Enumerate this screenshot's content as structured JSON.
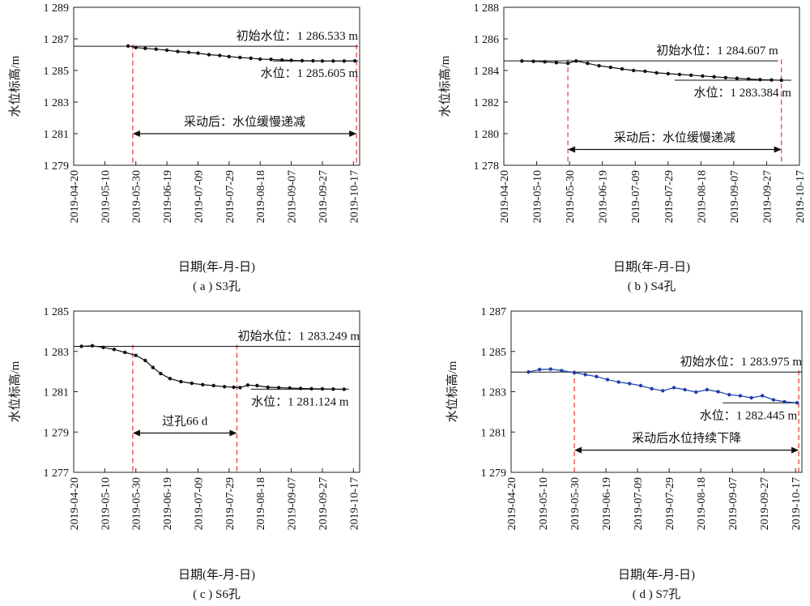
{
  "chart_data": [
    {
      "type": "line",
      "caption": "( a ) S3孔",
      "xlabel": "日期(年-月-日)",
      "ylabel": "水位标高/m",
      "x_ticks": [
        "2019-04-20",
        "2019-05-10",
        "2019-05-30",
        "2019-06-19",
        "2019-07-09",
        "2019-07-29",
        "2019-08-18",
        "2019-09-07",
        "2019-09-27",
        "2019-10-17"
      ],
      "y_ticks": [
        "1 279",
        "1 281",
        "1 283",
        "1 285",
        "1 287",
        "1 289"
      ],
      "ylim": [
        1279,
        1289
      ],
      "xlim": [
        "2019-04-20",
        "2019-10-21"
      ],
      "series": [
        {
          "color": "#111111",
          "points": [
            [
              "2019-05-25",
              1286.55
            ],
            [
              "2019-05-30",
              1286.45
            ],
            [
              "2019-06-05",
              1286.4
            ],
            [
              "2019-06-12",
              1286.35
            ],
            [
              "2019-06-19",
              1286.28
            ],
            [
              "2019-06-26",
              1286.2
            ],
            [
              "2019-07-03",
              1286.15
            ],
            [
              "2019-07-09",
              1286.1
            ],
            [
              "2019-07-16",
              1286.0
            ],
            [
              "2019-07-23",
              1285.95
            ],
            [
              "2019-07-29",
              1285.88
            ],
            [
              "2019-08-05",
              1285.82
            ],
            [
              "2019-08-12",
              1285.78
            ],
            [
              "2019-08-18",
              1285.72
            ],
            [
              "2019-08-25",
              1285.7
            ],
            [
              "2019-09-01",
              1285.66
            ],
            [
              "2019-09-07",
              1285.64
            ],
            [
              "2019-09-14",
              1285.62
            ],
            [
              "2019-09-21",
              1285.61
            ],
            [
              "2019-09-27",
              1285.6
            ],
            [
              "2019-10-04",
              1285.6
            ],
            [
              "2019-10-11",
              1285.6
            ],
            [
              "2019-10-18",
              1285.61
            ]
          ]
        }
      ],
      "hlines": [
        {
          "y": 1286.533,
          "x0": "2019-04-20",
          "x1": "2019-10-20",
          "label": "初始水位：1 286.533 m"
        },
        {
          "y": 1285.605,
          "x0": "2019-08-26",
          "x1": "2019-10-20",
          "label": "水位：1 285.605 m"
        }
      ],
      "vlines": [
        "2019-05-28",
        "2019-10-19"
      ],
      "arrow": {
        "x0": "2019-05-28",
        "x1": "2019-10-19",
        "y": 1281.0,
        "label": "采动后：水位缓慢递减"
      }
    },
    {
      "type": "line",
      "caption": "( b ) S4孔",
      "xlabel": "日期(年-月-日)",
      "ylabel": "水位标高/m",
      "x_ticks": [
        "2019-04-20",
        "2019-05-10",
        "2019-05-30",
        "2019-06-19",
        "2019-07-09",
        "2019-07-29",
        "2019-08-18",
        "2019-09-07",
        "2019-09-27",
        "2019-10-17"
      ],
      "y_ticks": [
        "1 278",
        "1 280",
        "1 282",
        "1 284",
        "1 286",
        "1 288"
      ],
      "ylim": [
        1278,
        1288
      ],
      "xlim": [
        "2019-04-20",
        "2019-10-17"
      ],
      "series": [
        {
          "color": "#111111",
          "points": [
            [
              "2019-05-01",
              1284.6
            ],
            [
              "2019-05-08",
              1284.58
            ],
            [
              "2019-05-15",
              1284.55
            ],
            [
              "2019-05-22",
              1284.5
            ],
            [
              "2019-05-29",
              1284.45
            ],
            [
              "2019-06-03",
              1284.6
            ],
            [
              "2019-06-10",
              1284.45
            ],
            [
              "2019-06-17",
              1284.3
            ],
            [
              "2019-06-24",
              1284.2
            ],
            [
              "2019-07-01",
              1284.1
            ],
            [
              "2019-07-08",
              1284.0
            ],
            [
              "2019-07-15",
              1283.95
            ],
            [
              "2019-07-22",
              1283.85
            ],
            [
              "2019-07-29",
              1283.8
            ],
            [
              "2019-08-05",
              1283.75
            ],
            [
              "2019-08-12",
              1283.7
            ],
            [
              "2019-08-19",
              1283.65
            ],
            [
              "2019-08-26",
              1283.6
            ],
            [
              "2019-09-02",
              1283.55
            ],
            [
              "2019-09-09",
              1283.5
            ],
            [
              "2019-09-16",
              1283.46
            ],
            [
              "2019-09-23",
              1283.42
            ],
            [
              "2019-09-30",
              1283.4
            ],
            [
              "2019-10-06",
              1283.38
            ]
          ]
        }
      ],
      "hlines": [
        {
          "y": 1284.607,
          "x0": "2019-04-20",
          "x1": "2019-10-04",
          "label": "初始水位：1 284.607 m"
        },
        {
          "y": 1283.384,
          "x0": "2019-08-02",
          "x1": "2019-10-12",
          "label": "水位：1 283.384 m"
        }
      ],
      "vlines": [
        "2019-05-29",
        "2019-10-06"
      ],
      "arrow": {
        "x0": "2019-05-29",
        "x1": "2019-10-06",
        "y": 1279.0,
        "label": "采动后：水位缓慢递减"
      }
    },
    {
      "type": "line",
      "caption": "( c ) S6孔",
      "xlabel": "日期(年-月-日)",
      "ylabel": "水位标高/m",
      "x_ticks": [
        "2019-04-20",
        "2019-05-10",
        "2019-05-30",
        "2019-06-19",
        "2019-07-09",
        "2019-07-29",
        "2019-08-18",
        "2019-09-07",
        "2019-09-27",
        "2019-10-17"
      ],
      "y_ticks": [
        "1 277",
        "1 279",
        "1 281",
        "1 283",
        "1 285"
      ],
      "ylim": [
        1277,
        1285
      ],
      "xlim": [
        "2019-04-20",
        "2019-10-21"
      ],
      "series": [
        {
          "color": "#111111",
          "points": [
            [
              "2019-04-25",
              1283.25
            ],
            [
              "2019-05-02",
              1283.28
            ],
            [
              "2019-05-09",
              1283.2
            ],
            [
              "2019-05-16",
              1283.1
            ],
            [
              "2019-05-23",
              1282.95
            ],
            [
              "2019-05-30",
              1282.8
            ],
            [
              "2019-06-05",
              1282.55
            ],
            [
              "2019-06-10",
              1282.2
            ],
            [
              "2019-06-15",
              1281.9
            ],
            [
              "2019-06-21",
              1281.65
            ],
            [
              "2019-06-28",
              1281.5
            ],
            [
              "2019-07-05",
              1281.42
            ],
            [
              "2019-07-12",
              1281.35
            ],
            [
              "2019-07-19",
              1281.3
            ],
            [
              "2019-07-26",
              1281.25
            ],
            [
              "2019-08-01",
              1281.22
            ],
            [
              "2019-08-05",
              1281.2
            ],
            [
              "2019-08-10",
              1281.33
            ],
            [
              "2019-08-16",
              1281.3
            ],
            [
              "2019-08-23",
              1281.22
            ],
            [
              "2019-08-30",
              1281.2
            ],
            [
              "2019-09-06",
              1281.18
            ],
            [
              "2019-09-13",
              1281.16
            ],
            [
              "2019-09-20",
              1281.15
            ],
            [
              "2019-09-27",
              1281.14
            ],
            [
              "2019-10-04",
              1281.13
            ],
            [
              "2019-10-11",
              1281.12
            ]
          ]
        }
      ],
      "hlines": [
        {
          "y": 1283.249,
          "x0": "2019-04-20",
          "x1": "2019-10-21",
          "label": "初始水位：1 283.249 m"
        },
        {
          "y": 1281.124,
          "x0": "2019-08-12",
          "x1": "2019-10-14",
          "label": "水位：1 281.124 m"
        }
      ],
      "vlines": [
        "2019-05-28",
        "2019-08-03"
      ],
      "arrow": {
        "x0": "2019-05-28",
        "x1": "2019-08-03",
        "y": 1278.95,
        "label": "过孔66 d"
      }
    },
    {
      "type": "line",
      "caption": "( d ) S7孔",
      "xlabel": "日期(年-月-日)",
      "ylabel": "水位标高/m",
      "x_ticks": [
        "2019-04-20",
        "2019-05-10",
        "2019-05-30",
        "2019-06-19",
        "2019-07-09",
        "2019-07-29",
        "2019-08-18",
        "2019-09-07",
        "2019-09-27",
        "2019-10-17"
      ],
      "y_ticks": [
        "1 279",
        "1 281",
        "1 283",
        "1 285",
        "1 287"
      ],
      "ylim": [
        1279,
        1287
      ],
      "xlim": [
        "2019-04-20",
        "2019-10-21"
      ],
      "series": [
        {
          "color": "#1f3fa8",
          "points": [
            [
              "2019-05-01",
              1283.98
            ],
            [
              "2019-05-08",
              1284.1
            ],
            [
              "2019-05-15",
              1284.12
            ],
            [
              "2019-05-22",
              1284.05
            ],
            [
              "2019-05-30",
              1283.95
            ],
            [
              "2019-06-06",
              1283.85
            ],
            [
              "2019-06-13",
              1283.75
            ],
            [
              "2019-06-20",
              1283.6
            ],
            [
              "2019-06-27",
              1283.48
            ],
            [
              "2019-07-04",
              1283.4
            ],
            [
              "2019-07-11",
              1283.3
            ],
            [
              "2019-07-18",
              1283.15
            ],
            [
              "2019-07-25",
              1283.05
            ],
            [
              "2019-08-01",
              1283.2
            ],
            [
              "2019-08-08",
              1283.1
            ],
            [
              "2019-08-15",
              1282.98
            ],
            [
              "2019-08-22",
              1283.1
            ],
            [
              "2019-08-29",
              1283.0
            ],
            [
              "2019-09-05",
              1282.85
            ],
            [
              "2019-09-12",
              1282.8
            ],
            [
              "2019-09-19",
              1282.7
            ],
            [
              "2019-09-26",
              1282.8
            ],
            [
              "2019-10-03",
              1282.6
            ],
            [
              "2019-10-10",
              1282.5
            ],
            [
              "2019-10-18",
              1282.45
            ]
          ]
        }
      ],
      "hlines": [
        {
          "y": 1283.975,
          "x0": "2019-04-20",
          "x1": "2019-10-21",
          "label": "初始水位：1 283.975 m"
        },
        {
          "y": 1282.445,
          "x0": "2019-09-01",
          "x1": "2019-10-18",
          "label": "水位：1 282.445 m"
        }
      ],
      "vlines": [
        "2019-05-30",
        "2019-10-19"
      ],
      "arrow": {
        "x0": "2019-05-30",
        "x1": "2019-10-19",
        "y": 1280.1,
        "label": "采动后水位持续下降"
      }
    }
  ]
}
